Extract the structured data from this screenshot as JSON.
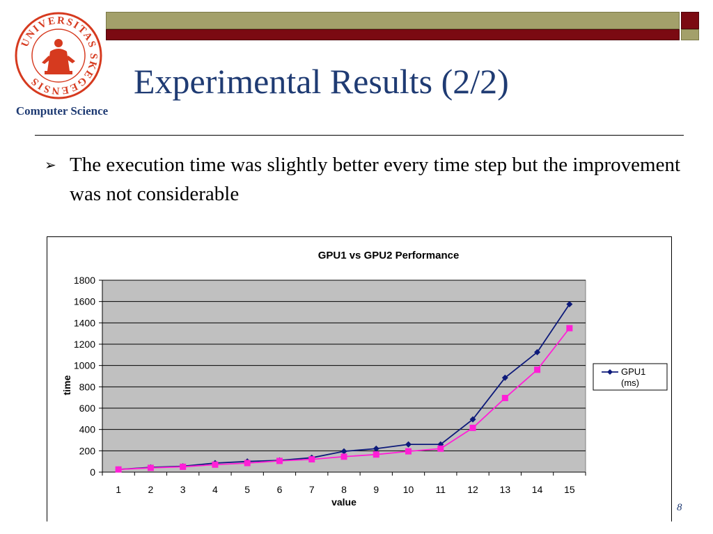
{
  "header": {
    "title": "Experimental Results (2/2)",
    "department": "Computer Science",
    "logo_text": "UNIVERSITAS SKEGEENSIS",
    "colors": {
      "olive": "#a3a06a",
      "maroon": "#7b0a12",
      "title": "#1f3b73",
      "logo": "#d63a1f"
    }
  },
  "bullets": [
    {
      "text": "The execution time was slightly better every time step but the improvement was not considerable"
    }
  ],
  "chart_data": {
    "type": "line",
    "title": "GPU1 vs GPU2 Performance",
    "xlabel": "value",
    "ylabel": "time",
    "categories": [
      "1",
      "2",
      "3",
      "4",
      "5",
      "6",
      "7",
      "8",
      "9",
      "10",
      "11",
      "12",
      "13",
      "14",
      "15"
    ],
    "ylim": [
      0,
      1800
    ],
    "yticks": [
      0,
      200,
      400,
      600,
      800,
      1000,
      1200,
      1400,
      1600,
      1800
    ],
    "grid": true,
    "legend_position": "right",
    "legend_text": "GPU1 (ms)",
    "series": [
      {
        "name": "GPU1 (ms)",
        "color": "#0d1a7a",
        "marker": "diamond",
        "values": [
          25,
          45,
          55,
          85,
          100,
          110,
          135,
          195,
          220,
          260,
          260,
          495,
          885,
          1125,
          1575
        ]
      },
      {
        "name": "",
        "color": "#ff1fd6",
        "marker": "square",
        "values": [
          25,
          40,
          50,
          70,
          85,
          105,
          120,
          145,
          165,
          195,
          220,
          415,
          695,
          960,
          1350
        ]
      }
    ],
    "plot_bg": "#c0c0c0"
  },
  "footer": {
    "page": "8"
  }
}
